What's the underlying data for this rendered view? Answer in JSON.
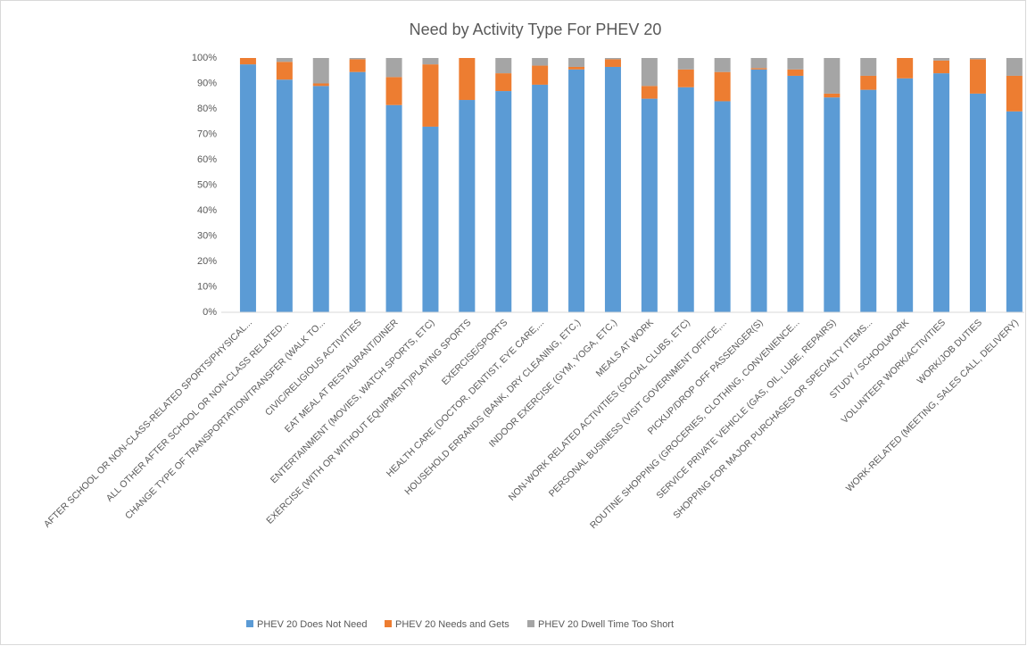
{
  "chart_data": {
    "type": "stacked_bar",
    "title": "Need by Activity Type For PHEV 20",
    "categories": [
      "AFTER SCHOOL OR NON-CLASS-RELATED SPORTS/PHYSICAL...",
      "ALL OTHER AFTER SCHOOL OR NON-CLASS RELATED...",
      "CHANGE TYPE OF TRANSPORTATION/TRANSFER (WALK TO...",
      "CIVIC/RELIGIOUS ACTIVITIES",
      "EAT MEAL AT RESTAURANT/DINER",
      "ENTERTAINMENT (MOVIES, WATCH SPORTS, ETC)",
      "EXERCISE (WITH OR WITHOUT EQUIPMENT)/PLAYING SPORTS",
      "EXERCISE/SPORTS",
      "HEALTH CARE (DOCTOR, DENTIST, EYE CARE,...",
      "HOUSEHOLD ERRANDS (BANK, DRY CLEANING, ETC.)",
      "INDOOR EXERCISE (GYM, YOGA, ETC.)",
      "MEALS AT WORK",
      "NON-WORK RELATED ACTIVITIES (SOCIAL CLUBS, ETC)",
      "PERSONAL BUSINESS (VISIT GOVERNMENT OFFICE,...",
      "PICKUP/DROP OFF PASSENGER(S)",
      "ROUTINE SHOPPING (GROCERIES, CLOTHING, CONVENIENCE...",
      "SERVICE PRIVATE VEHICLE (GAS, OIL, LUBE, REPAIRS)",
      "SHOPPING FOR MAJOR PURCHASES OR SPECIALTY ITEMS...",
      "STUDY / SCHOOLWORK",
      "VOLUNTEER WORK/ACTIVITIES",
      "WORK/JOB DUTIES",
      "WORK-RELATED (MEETING, SALES CALL, DELIVERY)"
    ],
    "series": [
      {
        "name": "PHEV 20 Does Not Need",
        "color": "#5b9bd5",
        "values": [
          97.5,
          91.5,
          89,
          94.5,
          81.5,
          73,
          83.5,
          87,
          89.5,
          95.5,
          96.5,
          84,
          88.5,
          83,
          95.5,
          93,
          84.5,
          87.5,
          92,
          94,
          86,
          79
        ]
      },
      {
        "name": "PHEV 20 Needs and Gets",
        "color": "#ed7d31",
        "values": [
          2.5,
          7,
          1,
          5,
          11,
          24.5,
          16.5,
          7,
          7.5,
          1,
          3,
          5,
          7,
          11.5,
          0.5,
          2.5,
          1.5,
          5.5,
          8,
          5,
          13.5,
          14
        ]
      },
      {
        "name": "PHEV 20 Dwell Time Too Short",
        "color": "#a5a5a5",
        "values": [
          0,
          1.5,
          10,
          0.5,
          7.5,
          2.5,
          0,
          6,
          3,
          3.5,
          0.5,
          11,
          4.5,
          5.5,
          4,
          4.5,
          14,
          7,
          0,
          1,
          0.5,
          7
        ]
      }
    ],
    "ylim": [
      0,
      100
    ],
    "yticks": [
      {
        "value": 0,
        "label": "0%"
      },
      {
        "value": 10,
        "label": "10%"
      },
      {
        "value": 20,
        "label": "20%"
      },
      {
        "value": 30,
        "label": "30%"
      },
      {
        "value": 40,
        "label": "40%"
      },
      {
        "value": 50,
        "label": "50%"
      },
      {
        "value": 60,
        "label": "60%"
      },
      {
        "value": 70,
        "label": "70%"
      },
      {
        "value": 80,
        "label": "80%"
      },
      {
        "value": 90,
        "label": "90%"
      },
      {
        "value": 100,
        "label": "100%"
      }
    ],
    "grid": false,
    "legend": "bottom"
  }
}
